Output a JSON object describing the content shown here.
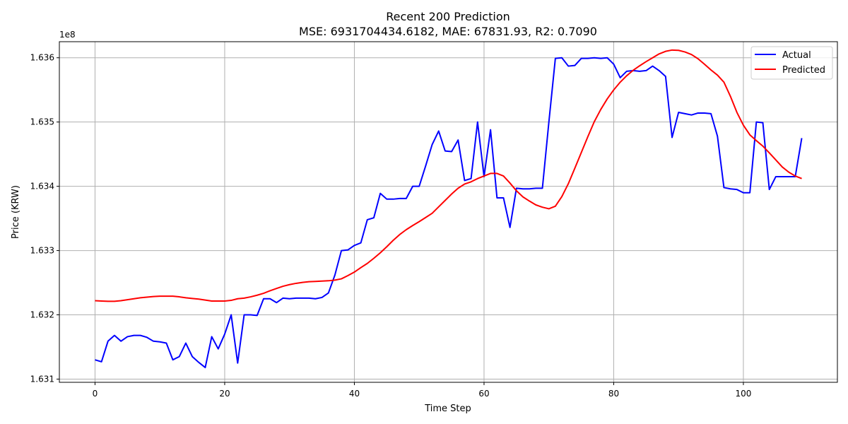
{
  "chart_data": {
    "type": "line",
    "title": "Recent 200 Prediction",
    "subtitle": "MSE: 6931704434.6182, MAE: 67831.93, R2: 0.7090",
    "xlabel": "Time Step",
    "ylabel": "Price (KRW)",
    "y_offset_label": "1e8",
    "xlim": [
      -5.5,
      114.5
    ],
    "ylim": [
      163095000,
      163625000
    ],
    "x_ticks": [
      0,
      20,
      40,
      60,
      80,
      100
    ],
    "x_tick_labels": [
      "0",
      "20",
      "40",
      "60",
      "80",
      "100"
    ],
    "y_ticks": [
      163100000,
      163200000,
      163300000,
      163400000,
      163500000,
      163600000
    ],
    "y_tick_labels": [
      "1.631",
      "1.632",
      "1.633",
      "1.634",
      "1.635",
      "1.636"
    ],
    "grid": true,
    "legend_position": "top-right",
    "series": [
      {
        "name": "Actual",
        "color": "#0000ff",
        "values": [
          163130000,
          163127000,
          163159000,
          163168000,
          163159000,
          163166000,
          163168000,
          163168000,
          163165000,
          163159000,
          163158000,
          163156000,
          163130000,
          163135000,
          163156000,
          163135000,
          163126000,
          163118000,
          163166000,
          163147000,
          163170000,
          163200000,
          163125000,
          163200000,
          163200000,
          163199000,
          163225000,
          163225000,
          163219000,
          163226000,
          163225000,
          163226000,
          163226000,
          163226000,
          163225000,
          163227000,
          163234000,
          163262000,
          163300000,
          163301000,
          163308000,
          163312000,
          163348000,
          163351000,
          163389000,
          163380000,
          163380000,
          163381000,
          163381000,
          163400000,
          163400000,
          163432000,
          163465000,
          163486000,
          163455000,
          163454000,
          163472000,
          163409000,
          163412000,
          163500000,
          163415000,
          163488000,
          163382000,
          163382000,
          163336000,
          163397000,
          163396000,
          163396000,
          163397000,
          163397000,
          163500000,
          163599000,
          163600000,
          163587000,
          163588000,
          163599000,
          163599000,
          163600000,
          163599000,
          163600000,
          163590000,
          163569000,
          163579000,
          163580000,
          163579000,
          163580000,
          163587000,
          163580000,
          163571000,
          163476000,
          163515000,
          163513000,
          163511000,
          163514000,
          163514000,
          163513000,
          163478000,
          163398000,
          163396000,
          163395000,
          163390000,
          163390000,
          163500000,
          163499000,
          163395000,
          163415000,
          163415000,
          163415000,
          163415000,
          163475000
        ]
      },
      {
        "name": "Predicted",
        "color": "#ff0000",
        "values": [
          163222000,
          163221500,
          163221000,
          163221000,
          163222000,
          163223500,
          163225000,
          163226500,
          163227500,
          163228500,
          163229000,
          163229000,
          163229000,
          163228000,
          163226500,
          163225500,
          163224500,
          163223000,
          163221500,
          163221500,
          163221500,
          163222500,
          163225000,
          163226000,
          163228000,
          163230500,
          163233500,
          163237500,
          163241000,
          163244500,
          163247000,
          163249000,
          163250500,
          163251500,
          163252000,
          163252500,
          163253000,
          163254000,
          163256000,
          163261000,
          163266500,
          163273500,
          163280000,
          163288000,
          163296500,
          163306000,
          163316000,
          163325000,
          163332500,
          163339000,
          163345000,
          163351500,
          163358000,
          163368000,
          163378000,
          163388000,
          163397000,
          163403500,
          163407000,
          163412000,
          163416000,
          163420000,
          163420000,
          163416000,
          163405000,
          163393000,
          163383500,
          163377000,
          163371000,
          163367500,
          163365000,
          163369000,
          163384000,
          163404000,
          163428000,
          163452500,
          163477000,
          163500500,
          163519500,
          163536000,
          163550000,
          163562000,
          163572000,
          163580500,
          163587500,
          163594000,
          163600000,
          163606000,
          163610000,
          163612000,
          163611500,
          163609000,
          163605000,
          163598500,
          163590000,
          163581000,
          163573000,
          163562000,
          163540000,
          163515000,
          163495000,
          163480000,
          163471000,
          163462500,
          163452000,
          163441000,
          163430000,
          163422000,
          163416000,
          163412000
        ]
      }
    ]
  }
}
